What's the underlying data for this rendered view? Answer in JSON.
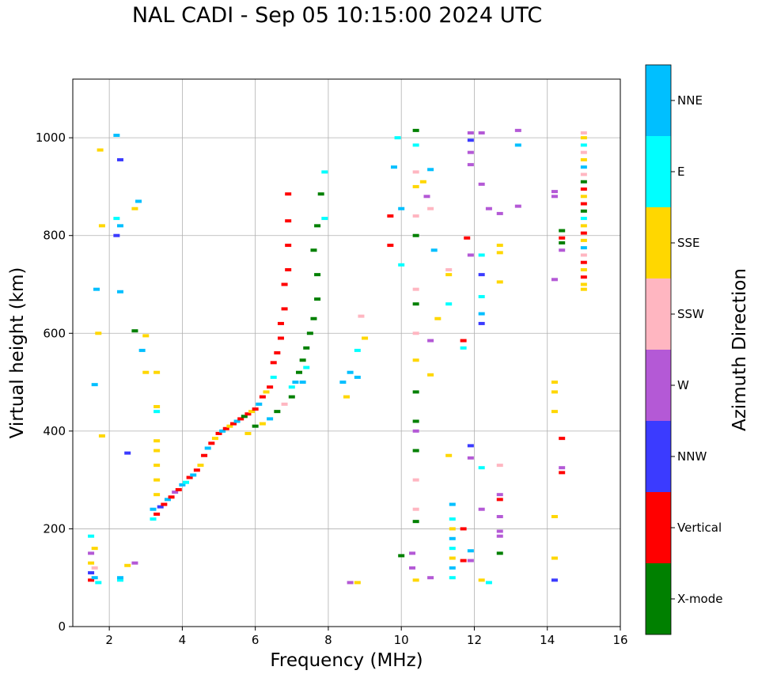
{
  "chart_data": {
    "type": "scatter",
    "title": "NAL CADI - Sep 05 10:15:00 2024 UTC",
    "xlabel": "Frequency (MHz)",
    "ylabel": "Virtual height (km)",
    "xlim": [
      1,
      16
    ],
    "ylim": [
      0,
      1120
    ],
    "xticks": [
      2,
      4,
      6,
      8,
      10,
      12,
      14,
      16
    ],
    "yticks": [
      0,
      200,
      400,
      600,
      800,
      1000
    ],
    "grid": true,
    "colorbar": {
      "label": "Azimuth Direction",
      "categories": [
        {
          "name": "X-mode",
          "color": "#008000"
        },
        {
          "name": "Vertical",
          "color": "#ff0000"
        },
        {
          "name": "NNW",
          "color": "#3b3bff"
        },
        {
          "name": "W",
          "color": "#b459d6"
        },
        {
          "name": "SSW",
          "color": "#ffb6c1"
        },
        {
          "name": "SSE",
          "color": "#ffd700"
        },
        {
          "name": "E",
          "color": "#00ffff"
        },
        {
          "name": "NNE",
          "color": "#00bfff"
        }
      ]
    },
    "points": [
      {
        "f": 1.5,
        "h": 95,
        "c": "Vertical"
      },
      {
        "f": 1.5,
        "h": 110,
        "c": "NNW"
      },
      {
        "f": 1.5,
        "h": 130,
        "c": "SSE"
      },
      {
        "f": 1.5,
        "h": 150,
        "c": "W"
      },
      {
        "f": 1.5,
        "h": 185,
        "c": "E"
      },
      {
        "f": 1.6,
        "h": 100,
        "c": "NNE"
      },
      {
        "f": 1.6,
        "h": 120,
        "c": "SSW"
      },
      {
        "f": 1.6,
        "h": 160,
        "c": "SSE"
      },
      {
        "f": 1.7,
        "h": 90,
        "c": "E"
      },
      {
        "f": 1.8,
        "h": 390,
        "c": "SSE"
      },
      {
        "f": 1.8,
        "h": 820,
        "c": "SSE"
      },
      {
        "f": 1.75,
        "h": 975,
        "c": "SSE"
      },
      {
        "f": 1.7,
        "h": 600,
        "c": "SSE"
      },
      {
        "f": 1.65,
        "h": 690,
        "c": "NNE"
      },
      {
        "f": 1.6,
        "h": 495,
        "c": "NNE"
      },
      {
        "f": 2.2,
        "h": 1005,
        "c": "NNE"
      },
      {
        "f": 2.3,
        "h": 955,
        "c": "NNW"
      },
      {
        "f": 2.2,
        "h": 835,
        "c": "E"
      },
      {
        "f": 2.3,
        "h": 820,
        "c": "NNE"
      },
      {
        "f": 2.2,
        "h": 800,
        "c": "NNW"
      },
      {
        "f": 2.3,
        "h": 685,
        "c": "NNE"
      },
      {
        "f": 2.3,
        "h": 95,
        "c": "E"
      },
      {
        "f": 2.3,
        "h": 100,
        "c": "NNE"
      },
      {
        "f": 2.5,
        "h": 355,
        "c": "NNW"
      },
      {
        "f": 2.5,
        "h": 125,
        "c": "SSE"
      },
      {
        "f": 2.7,
        "h": 130,
        "c": "W"
      },
      {
        "f": 2.8,
        "h": 870,
        "c": "NNE"
      },
      {
        "f": 2.7,
        "h": 855,
        "c": "SSE"
      },
      {
        "f": 2.7,
        "h": 605,
        "c": "X-mode"
      },
      {
        "f": 3.0,
        "h": 595,
        "c": "SSE"
      },
      {
        "f": 3.0,
        "h": 520,
        "c": "SSE"
      },
      {
        "f": 2.9,
        "h": 565,
        "c": "NNE"
      },
      {
        "f": 3.3,
        "h": 520,
        "c": "SSE"
      },
      {
        "f": 3.3,
        "h": 450,
        "c": "SSE"
      },
      {
        "f": 3.3,
        "h": 440,
        "c": "E"
      },
      {
        "f": 3.3,
        "h": 380,
        "c": "SSE"
      },
      {
        "f": 3.3,
        "h": 360,
        "c": "SSE"
      },
      {
        "f": 3.3,
        "h": 330,
        "c": "SSE"
      },
      {
        "f": 3.3,
        "h": 300,
        "c": "SSE"
      },
      {
        "f": 3.3,
        "h": 270,
        "c": "SSE"
      },
      {
        "f": 3.2,
        "h": 240,
        "c": "NNE"
      },
      {
        "f": 3.2,
        "h": 220,
        "c": "E"
      },
      {
        "f": 3.3,
        "h": 230,
        "c": "Vertical"
      },
      {
        "f": 3.4,
        "h": 245,
        "c": "NNW"
      },
      {
        "f": 3.5,
        "h": 250,
        "c": "Vertical"
      },
      {
        "f": 3.6,
        "h": 260,
        "c": "NNE"
      },
      {
        "f": 3.7,
        "h": 265,
        "c": "Vertical"
      },
      {
        "f": 3.8,
        "h": 275,
        "c": "W"
      },
      {
        "f": 3.9,
        "h": 280,
        "c": "Vertical"
      },
      {
        "f": 4.0,
        "h": 290,
        "c": "NNE"
      },
      {
        "f": 4.1,
        "h": 295,
        "c": "E"
      },
      {
        "f": 4.2,
        "h": 305,
        "c": "Vertical"
      },
      {
        "f": 4.3,
        "h": 310,
        "c": "NNE"
      },
      {
        "f": 4.4,
        "h": 320,
        "c": "Vertical"
      },
      {
        "f": 4.5,
        "h": 330,
        "c": "SSE"
      },
      {
        "f": 4.6,
        "h": 350,
        "c": "Vertical"
      },
      {
        "f": 4.7,
        "h": 365,
        "c": "NNE"
      },
      {
        "f": 4.8,
        "h": 375,
        "c": "Vertical"
      },
      {
        "f": 4.9,
        "h": 385,
        "c": "SSE"
      },
      {
        "f": 5.0,
        "h": 395,
        "c": "Vertical"
      },
      {
        "f": 5.1,
        "h": 400,
        "c": "NNE"
      },
      {
        "f": 5.2,
        "h": 405,
        "c": "Vertical"
      },
      {
        "f": 5.3,
        "h": 410,
        "c": "SSE"
      },
      {
        "f": 5.4,
        "h": 415,
        "c": "Vertical"
      },
      {
        "f": 5.5,
        "h": 420,
        "c": "NNE"
      },
      {
        "f": 5.6,
        "h": 425,
        "c": "Vertical"
      },
      {
        "f": 5.7,
        "h": 430,
        "c": "X-mode"
      },
      {
        "f": 5.8,
        "h": 435,
        "c": "Vertical"
      },
      {
        "f": 5.9,
        "h": 440,
        "c": "SSE"
      },
      {
        "f": 6.0,
        "h": 445,
        "c": "Vertical"
      },
      {
        "f": 6.1,
        "h": 455,
        "c": "NNE"
      },
      {
        "f": 6.2,
        "h": 470,
        "c": "Vertical"
      },
      {
        "f": 6.3,
        "h": 480,
        "c": "SSE"
      },
      {
        "f": 6.4,
        "h": 490,
        "c": "Vertical"
      },
      {
        "f": 6.5,
        "h": 510,
        "c": "E"
      },
      {
        "f": 6.5,
        "h": 540,
        "c": "Vertical"
      },
      {
        "f": 6.6,
        "h": 560,
        "c": "Vertical"
      },
      {
        "f": 6.7,
        "h": 590,
        "c": "Vertical"
      },
      {
        "f": 6.7,
        "h": 620,
        "c": "Vertical"
      },
      {
        "f": 6.8,
        "h": 650,
        "c": "Vertical"
      },
      {
        "f": 6.8,
        "h": 700,
        "c": "Vertical"
      },
      {
        "f": 6.9,
        "h": 730,
        "c": "Vertical"
      },
      {
        "f": 6.9,
        "h": 780,
        "c": "Vertical"
      },
      {
        "f": 6.9,
        "h": 830,
        "c": "Vertical"
      },
      {
        "f": 6.9,
        "h": 885,
        "c": "Vertical"
      },
      {
        "f": 5.8,
        "h": 395,
        "c": "SSE"
      },
      {
        "f": 6.0,
        "h": 410,
        "c": "X-mode"
      },
      {
        "f": 6.2,
        "h": 415,
        "c": "SSE"
      },
      {
        "f": 6.4,
        "h": 425,
        "c": "NNE"
      },
      {
        "f": 6.6,
        "h": 440,
        "c": "X-mode"
      },
      {
        "f": 6.8,
        "h": 455,
        "c": "SSW"
      },
      {
        "f": 7.0,
        "h": 470,
        "c": "X-mode"
      },
      {
        "f": 7.1,
        "h": 500,
        "c": "NNE"
      },
      {
        "f": 7.2,
        "h": 520,
        "c": "X-mode"
      },
      {
        "f": 7.3,
        "h": 545,
        "c": "X-mode"
      },
      {
        "f": 7.4,
        "h": 570,
        "c": "X-mode"
      },
      {
        "f": 7.5,
        "h": 600,
        "c": "X-mode"
      },
      {
        "f": 7.6,
        "h": 630,
        "c": "X-mode"
      },
      {
        "f": 7.7,
        "h": 670,
        "c": "X-mode"
      },
      {
        "f": 7.7,
        "h": 720,
        "c": "X-mode"
      },
      {
        "f": 7.6,
        "h": 770,
        "c": "X-mode"
      },
      {
        "f": 7.7,
        "h": 820,
        "c": "X-mode"
      },
      {
        "f": 7.9,
        "h": 835,
        "c": "E"
      },
      {
        "f": 7.9,
        "h": 930,
        "c": "E"
      },
      {
        "f": 7.8,
        "h": 885,
        "c": "X-mode"
      },
      {
        "f": 7.3,
        "h": 500,
        "c": "NNE"
      },
      {
        "f": 7.0,
        "h": 490,
        "c": "E"
      },
      {
        "f": 7.4,
        "h": 530,
        "c": "E"
      },
      {
        "f": 8.4,
        "h": 500,
        "c": "NNE"
      },
      {
        "f": 8.6,
        "h": 520,
        "c": "NNE"
      },
      {
        "f": 8.8,
        "h": 510,
        "c": "NNE"
      },
      {
        "f": 8.8,
        "h": 565,
        "c": "E"
      },
      {
        "f": 9.0,
        "h": 590,
        "c": "SSE"
      },
      {
        "f": 8.5,
        "h": 470,
        "c": "SSE"
      },
      {
        "f": 8.9,
        "h": 635,
        "c": "SSW"
      },
      {
        "f": 8.6,
        "h": 90,
        "c": "W"
      },
      {
        "f": 8.8,
        "h": 90,
        "c": "SSE"
      },
      {
        "f": 9.7,
        "h": 840,
        "c": "Vertical"
      },
      {
        "f": 9.7,
        "h": 780,
        "c": "Vertical"
      },
      {
        "f": 9.8,
        "h": 940,
        "c": "NNE"
      },
      {
        "f": 9.9,
        "h": 1000,
        "c": "E"
      },
      {
        "f": 10.0,
        "h": 855,
        "c": "NNE"
      },
      {
        "f": 10.0,
        "h": 740,
        "c": "E"
      },
      {
        "f": 10.0,
        "h": 145,
        "c": "X-mode"
      },
      {
        "f": 10.3,
        "h": 120,
        "c": "W"
      },
      {
        "f": 10.3,
        "h": 150,
        "c": "W"
      },
      {
        "f": 10.4,
        "h": 1015,
        "c": "X-mode"
      },
      {
        "f": 10.4,
        "h": 985,
        "c": "E"
      },
      {
        "f": 10.4,
        "h": 930,
        "c": "SSW"
      },
      {
        "f": 10.4,
        "h": 900,
        "c": "SSE"
      },
      {
        "f": 10.4,
        "h": 840,
        "c": "SSW"
      },
      {
        "f": 10.4,
        "h": 800,
        "c": "X-mode"
      },
      {
        "f": 10.4,
        "h": 690,
        "c": "SSW"
      },
      {
        "f": 10.4,
        "h": 660,
        "c": "X-mode"
      },
      {
        "f": 10.4,
        "h": 600,
        "c": "SSW"
      },
      {
        "f": 10.4,
        "h": 545,
        "c": "SSE"
      },
      {
        "f": 10.4,
        "h": 480,
        "c": "X-mode"
      },
      {
        "f": 10.4,
        "h": 420,
        "c": "X-mode"
      },
      {
        "f": 10.4,
        "h": 400,
        "c": "W"
      },
      {
        "f": 10.4,
        "h": 360,
        "c": "X-mode"
      },
      {
        "f": 10.4,
        "h": 300,
        "c": "SSW"
      },
      {
        "f": 10.4,
        "h": 240,
        "c": "SSW"
      },
      {
        "f": 10.4,
        "h": 215,
        "c": "X-mode"
      },
      {
        "f": 10.4,
        "h": 95,
        "c": "SSE"
      },
      {
        "f": 10.6,
        "h": 910,
        "c": "SSE"
      },
      {
        "f": 10.7,
        "h": 880,
        "c": "W"
      },
      {
        "f": 10.8,
        "h": 935,
        "c": "NNE"
      },
      {
        "f": 10.8,
        "h": 855,
        "c": "SSW"
      },
      {
        "f": 10.9,
        "h": 770,
        "c": "NNE"
      },
      {
        "f": 11.0,
        "h": 630,
        "c": "SSE"
      },
      {
        "f": 10.8,
        "h": 585,
        "c": "W"
      },
      {
        "f": 10.8,
        "h": 515,
        "c": "SSE"
      },
      {
        "f": 10.8,
        "h": 100,
        "c": "W"
      },
      {
        "f": 11.3,
        "h": 730,
        "c": "SSW"
      },
      {
        "f": 11.3,
        "h": 720,
        "c": "SSE"
      },
      {
        "f": 11.3,
        "h": 660,
        "c": "E"
      },
      {
        "f": 11.3,
        "h": 350,
        "c": "SSE"
      },
      {
        "f": 11.4,
        "h": 250,
        "c": "NNE"
      },
      {
        "f": 11.4,
        "h": 220,
        "c": "E"
      },
      {
        "f": 11.4,
        "h": 200,
        "c": "SSE"
      },
      {
        "f": 11.4,
        "h": 180,
        "c": "NNE"
      },
      {
        "f": 11.4,
        "h": 160,
        "c": "E"
      },
      {
        "f": 11.4,
        "h": 140,
        "c": "SSE"
      },
      {
        "f": 11.4,
        "h": 120,
        "c": "NNE"
      },
      {
        "f": 11.4,
        "h": 100,
        "c": "E"
      },
      {
        "f": 11.7,
        "h": 585,
        "c": "Vertical"
      },
      {
        "f": 11.7,
        "h": 570,
        "c": "E"
      },
      {
        "f": 11.7,
        "h": 200,
        "c": "Vertical"
      },
      {
        "f": 11.7,
        "h": 135,
        "c": "Vertical"
      },
      {
        "f": 11.9,
        "h": 1010,
        "c": "W"
      },
      {
        "f": 11.9,
        "h": 995,
        "c": "NNW"
      },
      {
        "f": 11.9,
        "h": 970,
        "c": "W"
      },
      {
        "f": 11.9,
        "h": 945,
        "c": "W"
      },
      {
        "f": 11.8,
        "h": 795,
        "c": "Vertical"
      },
      {
        "f": 11.9,
        "h": 760,
        "c": "W"
      },
      {
        "f": 11.9,
        "h": 345,
        "c": "W"
      },
      {
        "f": 11.9,
        "h": 370,
        "c": "NNW"
      },
      {
        "f": 11.9,
        "h": 155,
        "c": "NNE"
      },
      {
        "f": 11.9,
        "h": 135,
        "c": "W"
      },
      {
        "f": 12.2,
        "h": 1010,
        "c": "W"
      },
      {
        "f": 12.2,
        "h": 905,
        "c": "W"
      },
      {
        "f": 12.2,
        "h": 760,
        "c": "E"
      },
      {
        "f": 12.2,
        "h": 720,
        "c": "NNW"
      },
      {
        "f": 12.2,
        "h": 675,
        "c": "E"
      },
      {
        "f": 12.2,
        "h": 640,
        "c": "NNE"
      },
      {
        "f": 12.2,
        "h": 620,
        "c": "NNW"
      },
      {
        "f": 12.2,
        "h": 325,
        "c": "E"
      },
      {
        "f": 12.2,
        "h": 240,
        "c": "W"
      },
      {
        "f": 12.2,
        "h": 95,
        "c": "SSE"
      },
      {
        "f": 12.4,
        "h": 90,
        "c": "E"
      },
      {
        "f": 12.4,
        "h": 855,
        "c": "W"
      },
      {
        "f": 12.7,
        "h": 845,
        "c": "W"
      },
      {
        "f": 12.7,
        "h": 780,
        "c": "SSE"
      },
      {
        "f": 12.7,
        "h": 765,
        "c": "SSE"
      },
      {
        "f": 12.7,
        "h": 705,
        "c": "SSE"
      },
      {
        "f": 12.7,
        "h": 330,
        "c": "SSW"
      },
      {
        "f": 12.7,
        "h": 270,
        "c": "W"
      },
      {
        "f": 12.7,
        "h": 260,
        "c": "Vertical"
      },
      {
        "f": 12.7,
        "h": 225,
        "c": "W"
      },
      {
        "f": 12.7,
        "h": 195,
        "c": "W"
      },
      {
        "f": 12.7,
        "h": 185,
        "c": "W"
      },
      {
        "f": 12.7,
        "h": 150,
        "c": "X-mode"
      },
      {
        "f": 13.2,
        "h": 1015,
        "c": "W"
      },
      {
        "f": 13.2,
        "h": 985,
        "c": "NNE"
      },
      {
        "f": 13.2,
        "h": 860,
        "c": "W"
      },
      {
        "f": 14.2,
        "h": 890,
        "c": "W"
      },
      {
        "f": 14.2,
        "h": 880,
        "c": "W"
      },
      {
        "f": 14.2,
        "h": 710,
        "c": "W"
      },
      {
        "f": 14.2,
        "h": 500,
        "c": "SSE"
      },
      {
        "f": 14.2,
        "h": 480,
        "c": "SSE"
      },
      {
        "f": 14.2,
        "h": 440,
        "c": "SSE"
      },
      {
        "f": 14.2,
        "h": 225,
        "c": "SSE"
      },
      {
        "f": 14.2,
        "h": 140,
        "c": "SSE"
      },
      {
        "f": 14.2,
        "h": 95,
        "c": "NNW"
      },
      {
        "f": 14.4,
        "h": 810,
        "c": "X-mode"
      },
      {
        "f": 14.4,
        "h": 795,
        "c": "Vertical"
      },
      {
        "f": 14.4,
        "h": 785,
        "c": "X-mode"
      },
      {
        "f": 14.4,
        "h": 770,
        "c": "W"
      },
      {
        "f": 14.4,
        "h": 385,
        "c": "Vertical"
      },
      {
        "f": 14.4,
        "h": 325,
        "c": "W"
      },
      {
        "f": 14.4,
        "h": 315,
        "c": "Vertical"
      },
      {
        "f": 15.0,
        "h": 1010,
        "c": "SSW"
      },
      {
        "f": 15.0,
        "h": 1000,
        "c": "SSE"
      },
      {
        "f": 15.0,
        "h": 985,
        "c": "E"
      },
      {
        "f": 15.0,
        "h": 970,
        "c": "SSW"
      },
      {
        "f": 15.0,
        "h": 955,
        "c": "SSE"
      },
      {
        "f": 15.0,
        "h": 940,
        "c": "NNE"
      },
      {
        "f": 15.0,
        "h": 925,
        "c": "SSW"
      },
      {
        "f": 15.0,
        "h": 910,
        "c": "X-mode"
      },
      {
        "f": 15.0,
        "h": 895,
        "c": "Vertical"
      },
      {
        "f": 15.0,
        "h": 880,
        "c": "SSE"
      },
      {
        "f": 15.0,
        "h": 865,
        "c": "Vertical"
      },
      {
        "f": 15.0,
        "h": 850,
        "c": "X-mode"
      },
      {
        "f": 15.0,
        "h": 835,
        "c": "E"
      },
      {
        "f": 15.0,
        "h": 820,
        "c": "SSE"
      },
      {
        "f": 15.0,
        "h": 805,
        "c": "Vertical"
      },
      {
        "f": 15.0,
        "h": 790,
        "c": "SSE"
      },
      {
        "f": 15.0,
        "h": 775,
        "c": "NNE"
      },
      {
        "f": 15.0,
        "h": 760,
        "c": "SSW"
      },
      {
        "f": 15.0,
        "h": 745,
        "c": "Vertical"
      },
      {
        "f": 15.0,
        "h": 730,
        "c": "SSE"
      },
      {
        "f": 15.0,
        "h": 715,
        "c": "Vertical"
      },
      {
        "f": 15.0,
        "h": 700,
        "c": "SSE"
      },
      {
        "f": 15.0,
        "h": 690,
        "c": "SSE"
      }
    ]
  }
}
